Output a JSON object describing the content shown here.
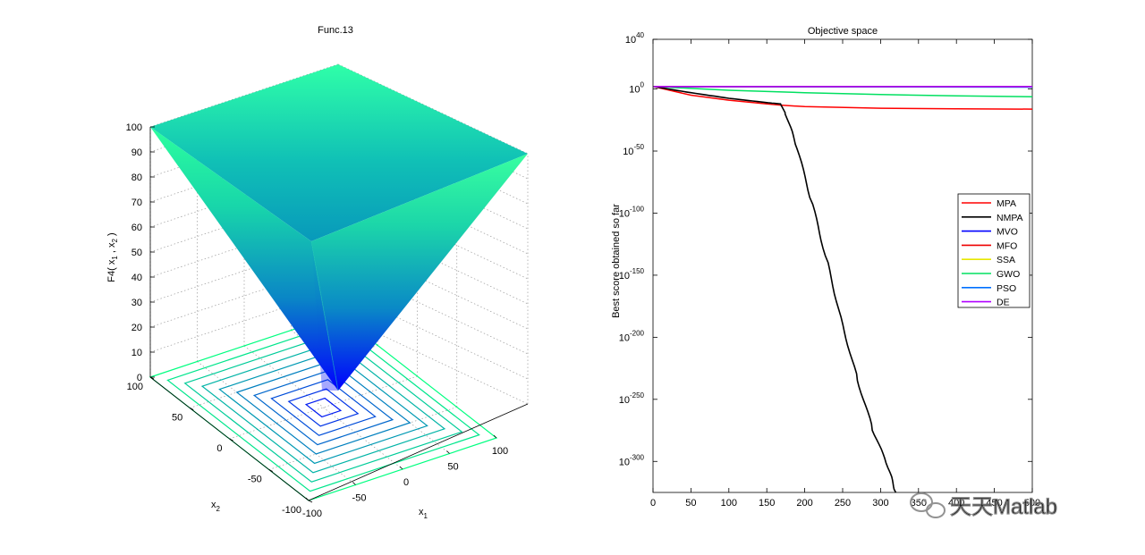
{
  "chart_data": [
    {
      "type": "surface3d",
      "title": "Func.13",
      "xlabel_main": "x",
      "xlabel_sub": "1",
      "ylabel_main": "x",
      "ylabel_sub": "2",
      "zlabel": "F4( x",
      "zlabel_sub1": "1",
      "zlabel_mid": " , x",
      "zlabel_sub2": "2",
      "zlabel_end": " )",
      "z_ticks": [
        "0",
        "10",
        "20",
        "30",
        "40",
        "50",
        "60",
        "70",
        "80",
        "90",
        "100"
      ],
      "x1_ticks": [
        "-100",
        "-50",
        "0",
        "50",
        "100"
      ],
      "x2_ticks": [
        "100",
        "50",
        "0",
        "-50",
        "-100"
      ],
      "xlim": [
        -100,
        100
      ],
      "ylim": [
        -100,
        100
      ],
      "zlim": [
        0,
        100
      ],
      "function": "max(|x1|, |x2|)",
      "colormap": "winter",
      "contour_levels": [
        10,
        20,
        30,
        40,
        50,
        60,
        70,
        80,
        90,
        100
      ]
    },
    {
      "type": "line",
      "title": "Objective space",
      "ylabel": "Best score obtained so far",
      "xlabel": "",
      "y_scale": "log",
      "x_ticks": [
        "0",
        "50",
        "100",
        "150",
        "200",
        "250",
        "300",
        "350",
        "400",
        "450",
        "500"
      ],
      "y_tick_exponents": [
        "40",
        "0",
        "-50",
        "-100",
        "-150",
        "-200",
        "-250",
        "-300"
      ],
      "y_tick_base": "10",
      "xlim": [
        0,
        500
      ],
      "ylim_exponent": [
        -325,
        40
      ],
      "legend_position": "right",
      "series": [
        {
          "name": "MPA",
          "color": "#ff0000",
          "x": [
            1,
            50,
            100,
            150,
            168,
            200,
            300,
            400,
            500
          ],
          "log10_y": [
            1.9,
            -5,
            -9,
            -12,
            -13,
            -14.2,
            -15.5,
            -16,
            -16.2
          ]
        },
        {
          "name": "NMPA",
          "color": "#000000",
          "x": [
            1,
            50,
            100,
            150,
            168,
            175,
            190,
            210,
            230,
            250,
            270,
            290,
            310,
            320
          ],
          "log10_y": [
            1.9,
            -3,
            -7.5,
            -11,
            -12,
            -20,
            -48,
            -93,
            -140,
            -190,
            -235,
            -275,
            -305,
            -325
          ]
        },
        {
          "name": "MVO",
          "color": "#0000ff",
          "x": [
            1,
            500
          ],
          "log10_y": [
            1.9,
            1.6
          ]
        },
        {
          "name": "MFO",
          "color": "#ee0000",
          "x": [
            1,
            500
          ],
          "log10_y": [
            1.9,
            1.9
          ]
        },
        {
          "name": "SSA",
          "color": "#e8e800",
          "x": [
            1,
            500
          ],
          "log10_y": [
            1.9,
            1.7
          ]
        },
        {
          "name": "GWO",
          "color": "#00e060",
          "x": [
            1,
            100,
            200,
            300,
            400,
            500
          ],
          "log10_y": [
            1.9,
            -1,
            -3,
            -4.5,
            -5.5,
            -6.2
          ]
        },
        {
          "name": "PSO",
          "color": "#0070ff",
          "x": [
            1,
            500
          ],
          "log10_y": [
            1.9,
            1.5
          ]
        },
        {
          "name": "DE",
          "color": "#b000ff",
          "x": [
            1,
            500
          ],
          "log10_y": [
            1.9,
            1.9
          ]
        }
      ]
    }
  ],
  "watermark": "天天Matlab"
}
